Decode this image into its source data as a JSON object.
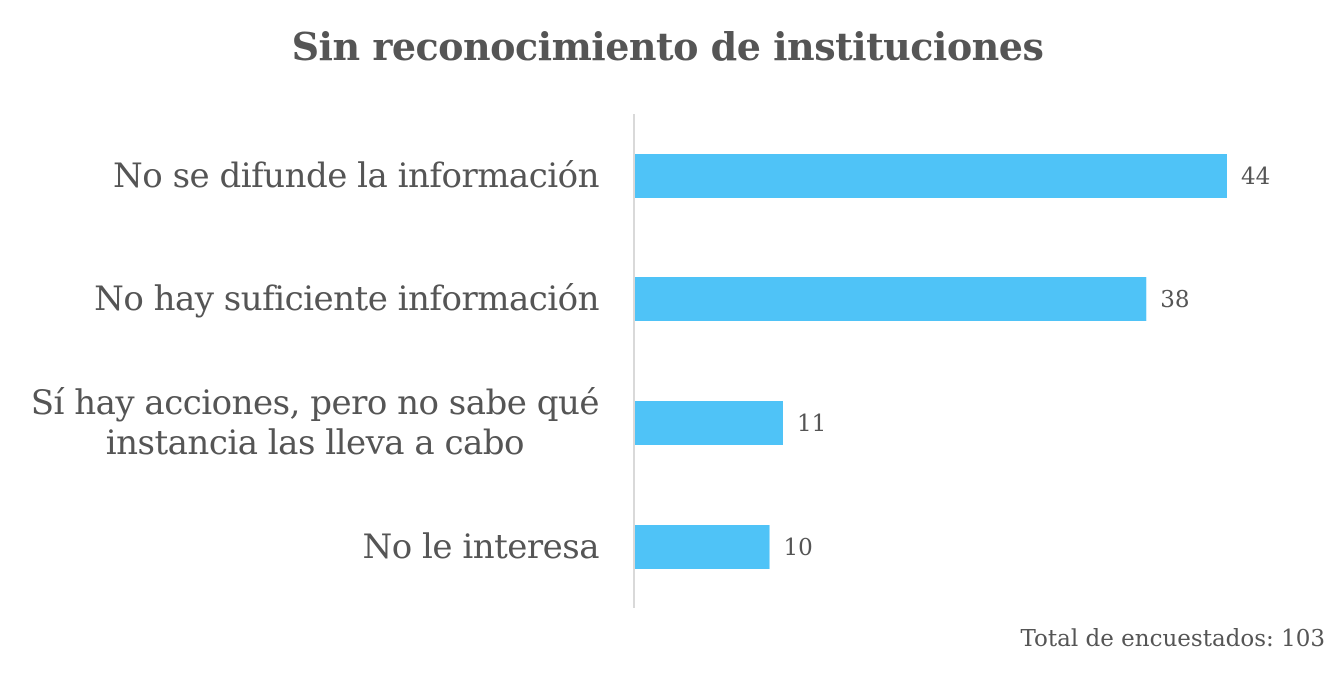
{
  "chart_data": {
    "type": "bar",
    "orientation": "horizontal",
    "title": "Sin reconocimiento de instituciones",
    "categories": [
      "No se difunde la información",
      "No hay suficiente información",
      "Sí hay acciones, pero no sabe qué instancia las lleva a cabo",
      "No le interesa"
    ],
    "category_lines": [
      [
        "No se difunde la información"
      ],
      [
        "No hay suficiente información"
      ],
      [
        "Sí hay acciones, pero no sabe qué",
        "instancia las lleva a cabo"
      ],
      [
        "No le interesa"
      ]
    ],
    "values": [
      44,
      38,
      11,
      10
    ],
    "xlim": [
      0,
      48
    ],
    "grid": false,
    "legend": "none",
    "bar_color": "#4FC3F7",
    "axis_color": "#D9D9D9",
    "text_color": "#555555"
  },
  "footnote": "Total de encuestados: 103"
}
